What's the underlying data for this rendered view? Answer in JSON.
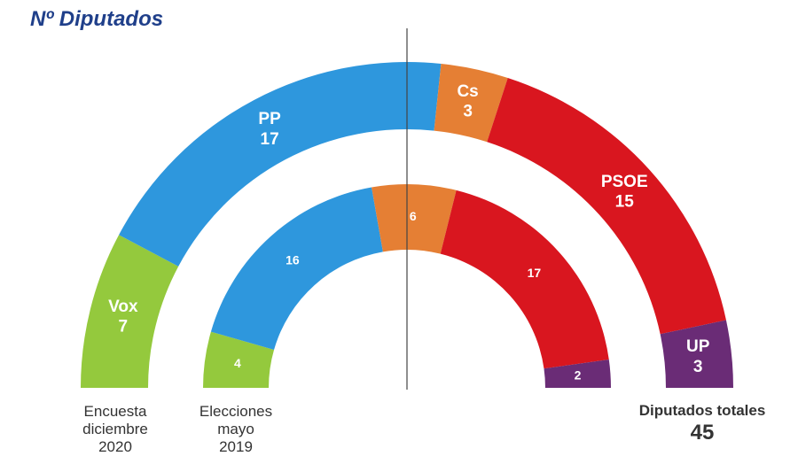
{
  "title": "Nº Diputados",
  "total": {
    "label": "Diputados totales",
    "value": "45"
  },
  "chart_data": {
    "type": "parliament-donut",
    "total_seats": 45,
    "rings": [
      {
        "name": "Encuesta diciembre 2020",
        "label_lines": [
          "Encuesta",
          "diciembre",
          "2020"
        ],
        "segments": [
          {
            "party": "Vox",
            "seats": 7,
            "label": "Vox",
            "value_label": "7",
            "color": "#94c93d"
          },
          {
            "party": "PP",
            "seats": 17,
            "label": "PP",
            "value_label": "17",
            "color": "#2e97dd"
          },
          {
            "party": "Cs",
            "seats": 3,
            "label": "Cs",
            "value_label": "3",
            "color": "#e57f34"
          },
          {
            "party": "PSOE",
            "seats": 15,
            "label": "PSOE",
            "value_label": "15",
            "color": "#d9161f"
          },
          {
            "party": "UP",
            "seats": 3,
            "label": "UP",
            "value_label": "3",
            "color": "#6a2c76"
          }
        ]
      },
      {
        "name": "Elecciones mayo 2019",
        "label_lines": [
          "Elecciones",
          "mayo",
          "2019"
        ],
        "segments": [
          {
            "party": "Vox",
            "seats": 4,
            "label": "",
            "value_label": "4",
            "color": "#94c93d"
          },
          {
            "party": "PP",
            "seats": 16,
            "label": "",
            "value_label": "16",
            "color": "#2e97dd"
          },
          {
            "party": "Cs",
            "seats": 6,
            "label": "",
            "value_label": "6",
            "color": "#e57f34"
          },
          {
            "party": "PSOE",
            "seats": 17,
            "label": "",
            "value_label": "17",
            "color": "#d9161f"
          },
          {
            "party": "UP",
            "seats": 2,
            "label": "",
            "value_label": "2",
            "color": "#6a2c76"
          }
        ]
      }
    ]
  }
}
